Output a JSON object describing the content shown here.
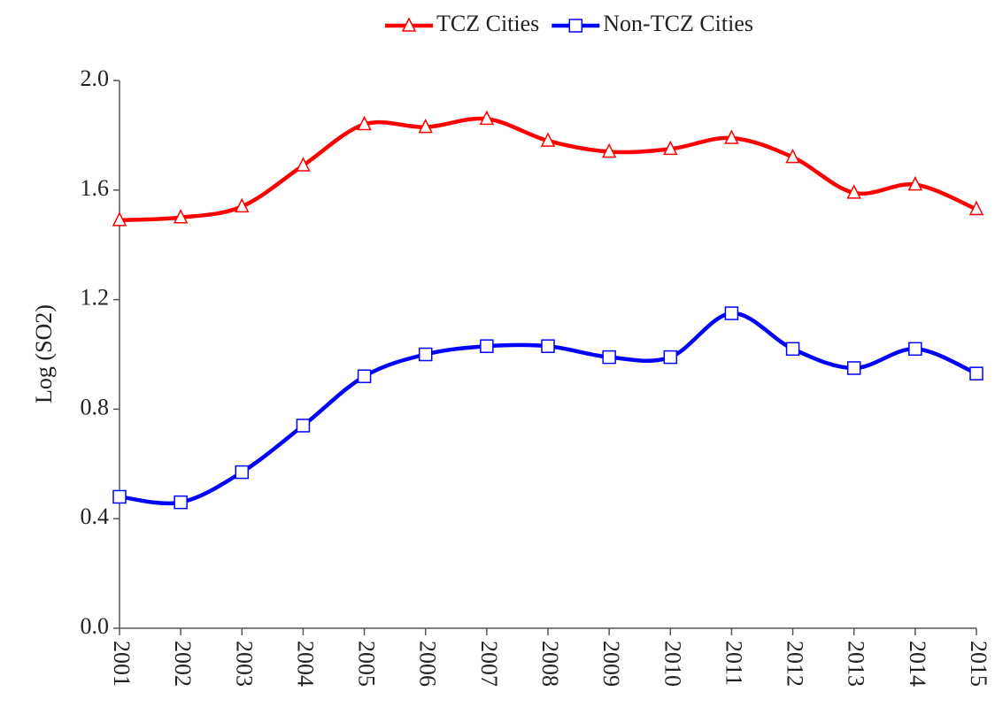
{
  "chart_data": {
    "type": "line",
    "y_label": "Log (SO2)",
    "categories": [
      "2001",
      "2002",
      "2003",
      "2004",
      "2005",
      "2006",
      "2007",
      "2008",
      "2009",
      "2010",
      "2011",
      "2012",
      "2013",
      "2014",
      "2015"
    ],
    "series": [
      {
        "name": "TCZ Cities",
        "color": "#ff0000",
        "marker": "triangle",
        "values": [
          1.49,
          1.5,
          1.54,
          1.69,
          1.84,
          1.83,
          1.86,
          1.78,
          1.74,
          1.75,
          1.79,
          1.72,
          1.59,
          1.62,
          1.53
        ]
      },
      {
        "name": "Non-TCZ Cities",
        "color": "#0000ff",
        "marker": "square",
        "values": [
          0.48,
          0.46,
          0.57,
          0.74,
          0.92,
          1.0,
          1.03,
          1.03,
          0.99,
          0.99,
          1.15,
          1.02,
          0.95,
          1.02,
          0.93
        ]
      }
    ],
    "ylim": [
      0,
      2
    ],
    "yticks": [
      {
        "value": 0,
        "label": "0.0"
      },
      0.4,
      0.8,
      1.2,
      1.6,
      {
        "value": 2,
        "label": "2.0"
      }
    ],
    "legend": "top"
  }
}
